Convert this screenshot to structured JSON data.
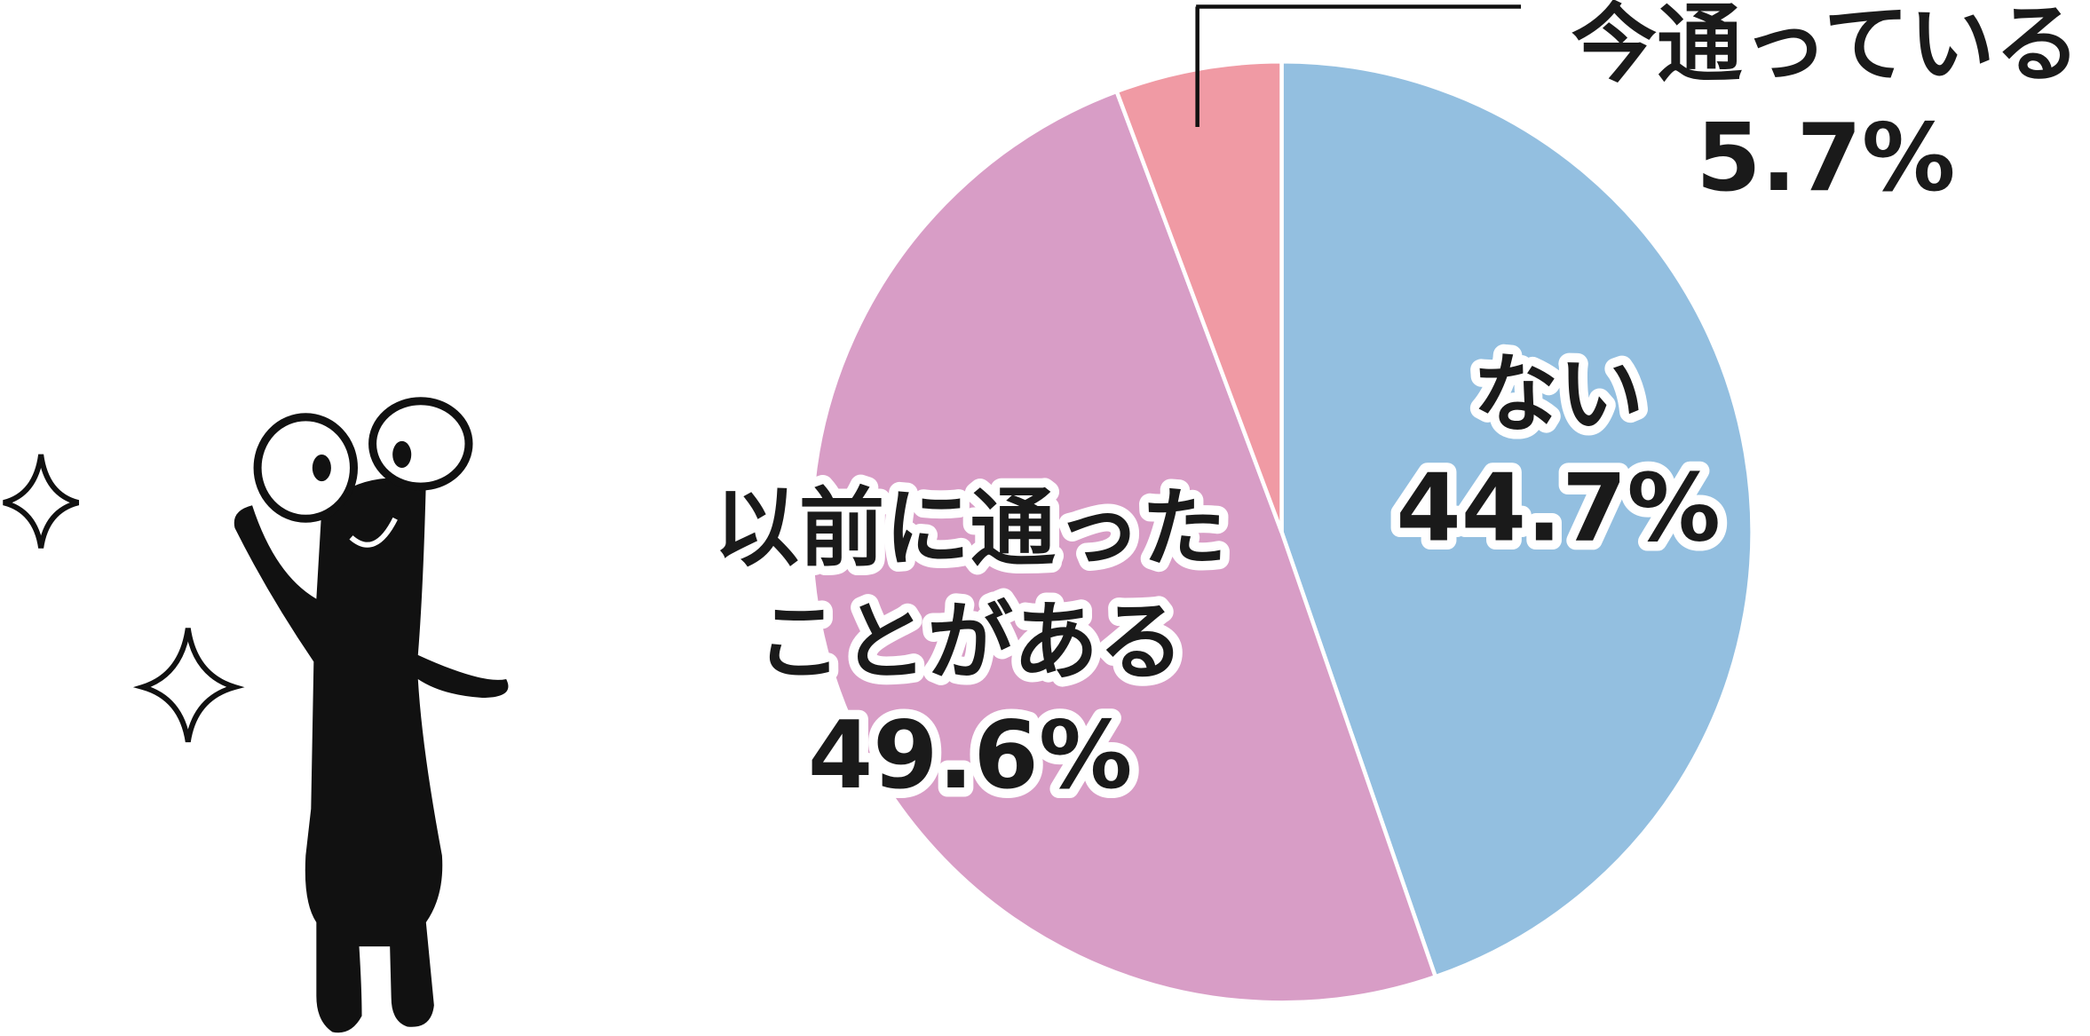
{
  "chart_data": {
    "type": "pie",
    "categories": [
      "ない",
      "以前に通ったことがある",
      "今通っている"
    ],
    "values": [
      44.7,
      49.6,
      5.7
    ],
    "value_labels": [
      "44.7%",
      "49.6%",
      "5.7%"
    ],
    "colors": [
      "#93bfe0",
      "#d89dc6",
      "#f09aa4"
    ]
  }
}
